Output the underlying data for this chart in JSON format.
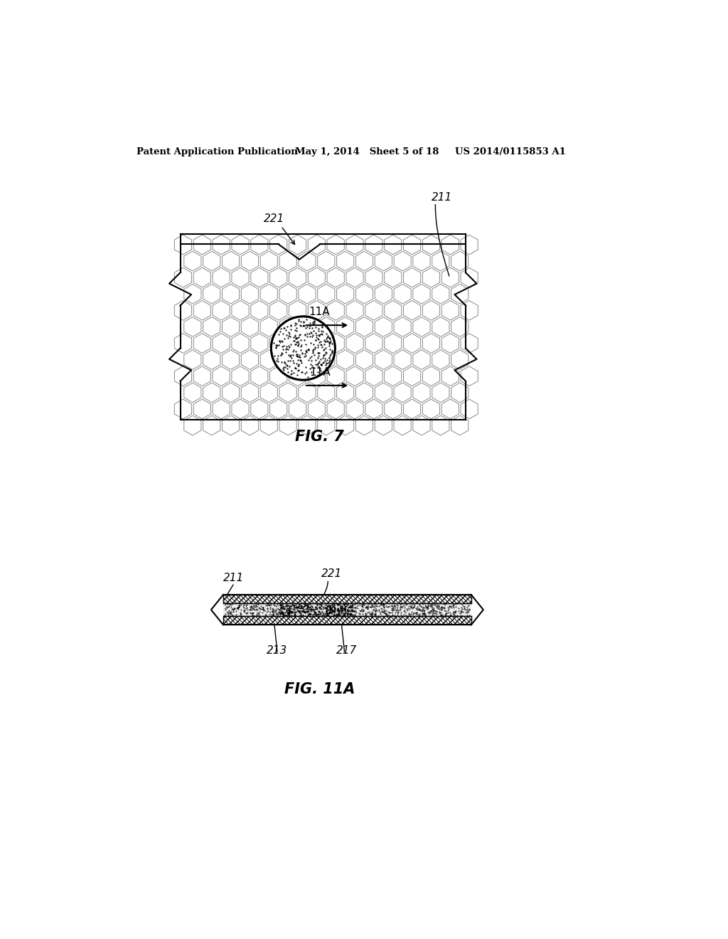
{
  "bg_color": "#ffffff",
  "header_left": "Patent Application Publication",
  "header_mid": "May 1, 2014   Sheet 5 of 18",
  "header_right": "US 2014/0115853 A1",
  "fig7_label": "FIG. 7",
  "fig11a_label": "FIG. 11A",
  "label_211_fig7": "211",
  "label_221_fig7": "221",
  "label_11A_top": "11A",
  "label_11A_bot": "11A",
  "label_211_fig11": "211",
  "label_221_fig11": "221",
  "label_213": "213",
  "label_217": "217"
}
